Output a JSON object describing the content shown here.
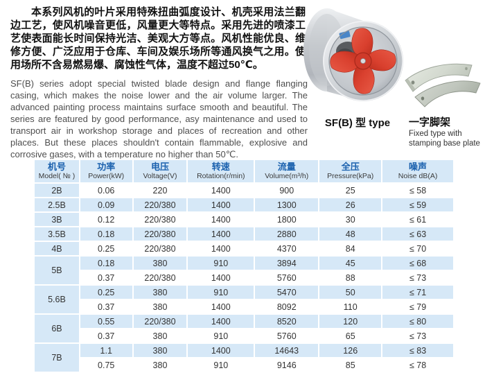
{
  "colors": {
    "cell_blue": "#d6e8f7",
    "header_text_blue": "#1b61ae",
    "body_text": "#333333",
    "fan_red": "#d9402e"
  },
  "intro": {
    "zh": "本系列风机的叶片采用特殊扭曲弧度设计、机壳采用法兰翻边工艺，使风机噪音更低，风量更大等特点。采用先进的喷漆工艺使表面能长时间保持光洁、美观大方等点。风机性能优良、维修方便、广泛应用于仓库、车间及娱乐场所等通风换气之用。使用场所不含易燃易爆、腐蚀性气体，温度不超过50℃。",
    "en": "SF(B) series adopt special twisted blade design and flange flanging casing, which makes the noise lower and the air volume larger. The advanced painting process maintains surface smooth and beautiful. The series are featured by good performance, asy maintenance and used to transport air in workshop storage and places of recreation and other places. But these places shouldn't contain flammable, explosive and corrosive gases, with a temperature no higher than 50℃."
  },
  "figures": {
    "fan_caption": "SF(B) 型 type",
    "stand_caption_zh": "一字脚架",
    "stand_caption_en": "Fixed type with stamping base plate"
  },
  "table": {
    "headers": [
      {
        "zh": "机号",
        "en": "Model( № )"
      },
      {
        "zh": "功率",
        "en": "Power(kW)"
      },
      {
        "zh": "电压",
        "en": "Voltage(V)"
      },
      {
        "zh": "转速",
        "en": "Rotation(r/min)"
      },
      {
        "zh": "流量",
        "en": "Volume(m³/h)"
      },
      {
        "zh": "全压",
        "en": "Pressure(kPa)"
      },
      {
        "zh": "噪声",
        "en": "Noise dB(A)"
      }
    ],
    "groups": [
      {
        "model": "2B",
        "rows": [
          [
            "0.06",
            "220",
            "1400",
            "900",
            "25",
            "≤ 58"
          ]
        ]
      },
      {
        "model": "2.5B",
        "rows": [
          [
            "0.09",
            "220/380",
            "1400",
            "1300",
            "26",
            "≤ 59"
          ]
        ]
      },
      {
        "model": "3B",
        "rows": [
          [
            "0.12",
            "220/380",
            "1400",
            "1800",
            "30",
            "≤ 61"
          ]
        ]
      },
      {
        "model": "3.5B",
        "rows": [
          [
            "0.18",
            "220/380",
            "1400",
            "2880",
            "48",
            "≤ 63"
          ]
        ]
      },
      {
        "model": "4B",
        "rows": [
          [
            "0.25",
            "220/380",
            "1400",
            "4370",
            "84",
            "≤ 70"
          ]
        ]
      },
      {
        "model": "5B",
        "rows": [
          [
            "0.18",
            "380",
            "910",
            "3894",
            "45",
            "≤ 68"
          ],
          [
            "0.37",
            "220/380",
            "1400",
            "5760",
            "88",
            "≤ 73"
          ]
        ]
      },
      {
        "model": "5.6B",
        "rows": [
          [
            "0.25",
            "380",
            "910",
            "5470",
            "50",
            "≤ 71"
          ],
          [
            "0.37",
            "380",
            "1400",
            "8092",
            "110",
            "≤ 79"
          ]
        ]
      },
      {
        "model": "6B",
        "rows": [
          [
            "0.55",
            "220/380",
            "1400",
            "8520",
            "120",
            "≤ 80"
          ],
          [
            "0.37",
            "380",
            "910",
            "5760",
            "65",
            "≤ 73"
          ]
        ]
      },
      {
        "model": "7B",
        "rows": [
          [
            "1.1",
            "380",
            "1400",
            "14643",
            "126",
            "≤ 83"
          ],
          [
            "0.75",
            "380",
            "910",
            "9146",
            "85",
            "≤ 78"
          ]
        ]
      }
    ]
  }
}
